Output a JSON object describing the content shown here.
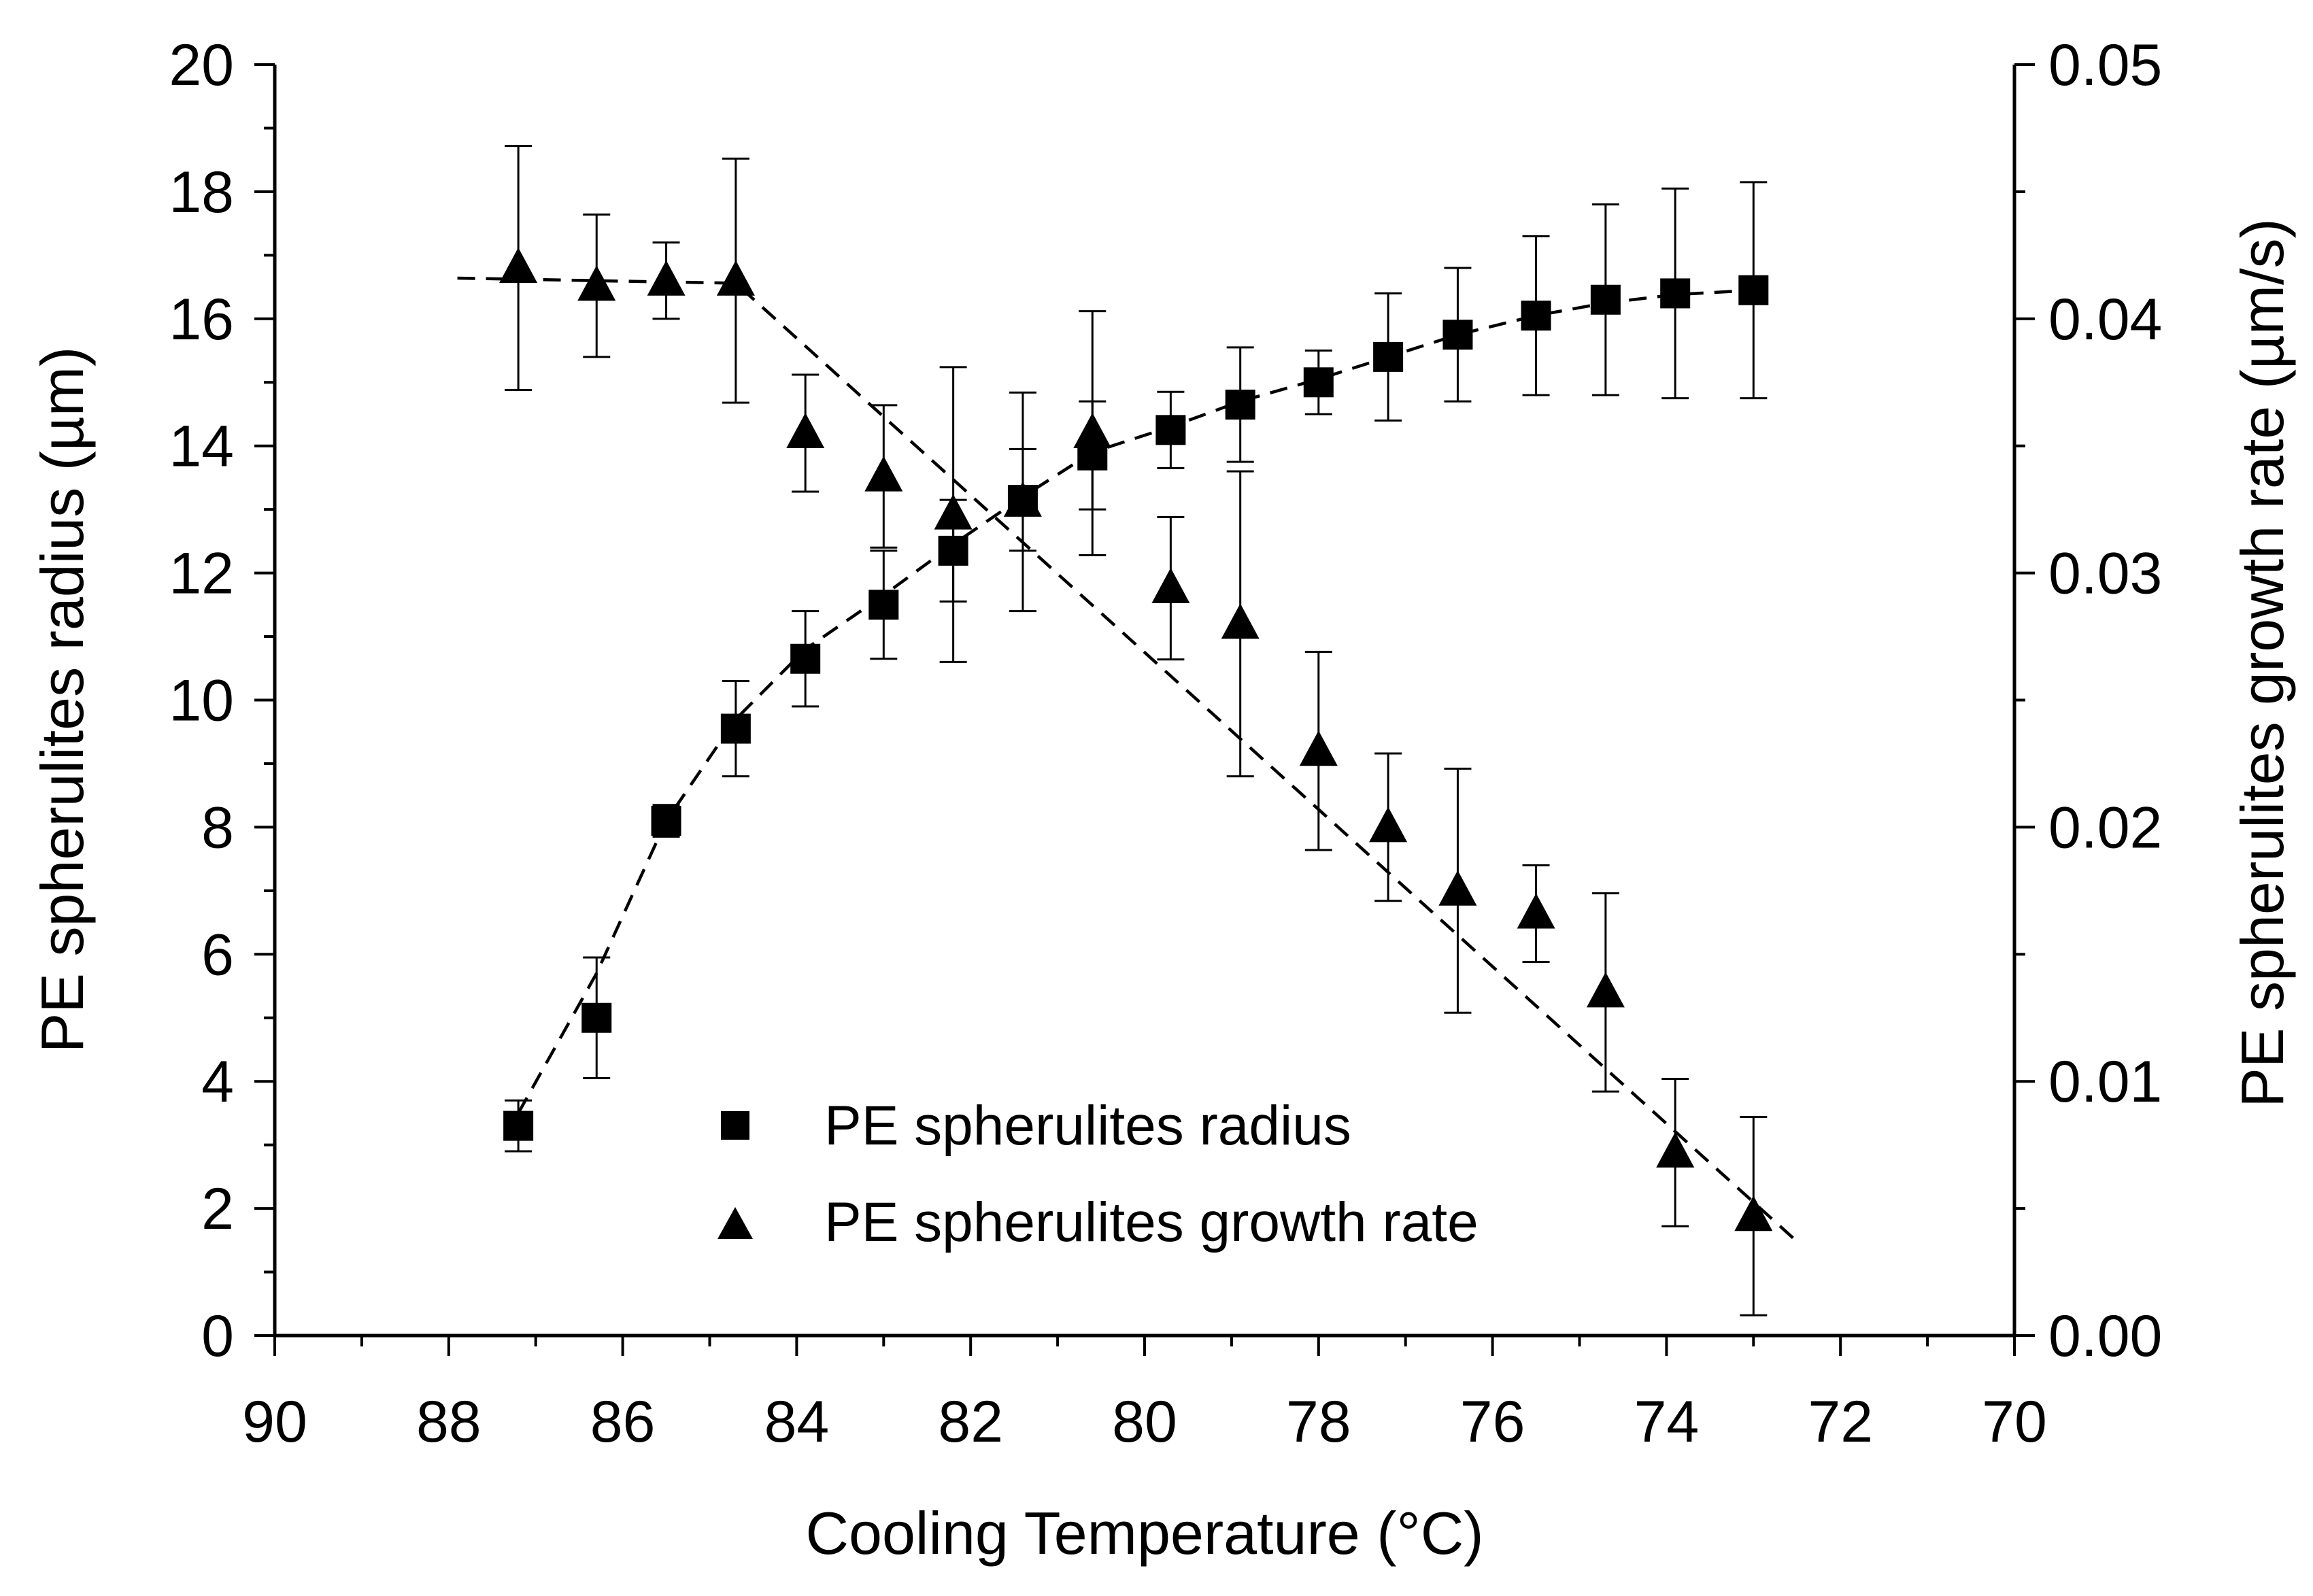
{
  "chart_data": {
    "type": "scatter",
    "title": "",
    "xlabel": "Cooling Temperature (°C)",
    "ylabel": "PE spherulites radius (µm)",
    "y2label": "PE spherulites growth rate (µm/s)",
    "xlim": [
      90,
      70
    ],
    "ylim": [
      0,
      20
    ],
    "y2lim": [
      0,
      0.05
    ],
    "x_ticks": [
      90,
      88,
      86,
      84,
      82,
      80,
      78,
      76,
      74,
      72,
      70
    ],
    "x_tick_labels": [
      "90",
      "88",
      "86",
      "84",
      "82",
      "80",
      "78",
      "76",
      "74",
      "72",
      "70"
    ],
    "y_ticks": [
      0,
      2,
      4,
      6,
      8,
      10,
      12,
      14,
      16,
      18,
      20
    ],
    "y_tick_labels": [
      "0",
      "2",
      "4",
      "6",
      "8",
      "10",
      "12",
      "14",
      "16",
      "18",
      "20"
    ],
    "y2_ticks": [
      0,
      0.01,
      0.02,
      0.03,
      0.04,
      0.05
    ],
    "y2_tick_labels": [
      "0.00",
      "0.01",
      "0.02",
      "0.03",
      "0.04",
      "0.05"
    ],
    "legend_position": "bottom-center",
    "grid": false,
    "colors": {
      "marker": "#000000",
      "axis": "#000000",
      "background": "#ffffff"
    },
    "series": [
      {
        "name": "PE spherulites radius",
        "marker": "square",
        "axis": "left",
        "x": [
          87.2,
          86.3,
          85.5,
          84.7,
          83.9,
          83.0,
          82.2,
          81.4,
          80.6,
          79.7,
          78.9,
          78.0,
          77.2,
          76.4,
          75.5,
          74.7,
          73.9,
          73.0
        ],
        "y": [
          3.3,
          5.0,
          8.1,
          9.55,
          10.65,
          11.5,
          12.35,
          13.15,
          13.85,
          14.25,
          14.65,
          15.0,
          15.4,
          15.75,
          16.05,
          16.3,
          16.4,
          16.45
        ],
        "err": [
          0.4,
          0.95,
          0.25,
          0.75,
          0.75,
          0.85,
          0.8,
          0.8,
          0.85,
          0.6,
          0.9,
          0.5,
          1.0,
          1.05,
          1.25,
          1.5,
          1.65,
          1.7
        ]
      },
      {
        "name": "PE spherulites growth rate",
        "marker": "triangle",
        "axis": "right",
        "x": [
          87.2,
          86.3,
          85.5,
          84.7,
          83.9,
          83.0,
          82.2,
          81.4,
          80.6,
          79.7,
          78.9,
          78.0,
          77.2,
          76.4,
          75.5,
          74.7,
          73.9,
          73.0
        ],
        "y": [
          0.042,
          0.0413,
          0.0415,
          0.0415,
          0.0355,
          0.0338,
          0.0323,
          0.0328,
          0.0355,
          0.0294,
          0.028,
          0.023,
          0.02,
          0.0175,
          0.0166,
          0.0135,
          0.0072,
          0.0047
        ],
        "err": [
          0.0048,
          0.0028,
          0.0015,
          0.0048,
          0.0023,
          0.0028,
          0.0058,
          0.0043,
          0.0048,
          0.0028,
          0.006,
          0.0039,
          0.0029,
          0.0048,
          0.0019,
          0.0039,
          0.0029,
          0.0039
        ]
      }
    ],
    "trend_lines": [
      {
        "name": "radius-trend",
        "axis": "left",
        "points": [
          [
            87.2,
            3.5
          ],
          [
            86.3,
            5.7
          ],
          [
            85.5,
            8.1
          ],
          [
            84.7,
            9.7
          ],
          [
            83.9,
            10.8
          ],
          [
            83.0,
            11.65
          ],
          [
            82.2,
            12.45
          ],
          [
            81.4,
            13.2
          ],
          [
            80.6,
            13.9
          ],
          [
            79.7,
            14.3
          ],
          [
            78.9,
            14.7
          ],
          [
            78.0,
            15.05
          ],
          [
            77.2,
            15.4
          ],
          [
            76.4,
            15.75
          ],
          [
            75.5,
            16.05
          ],
          [
            74.7,
            16.25
          ],
          [
            73.9,
            16.38
          ],
          [
            73.0,
            16.45
          ]
        ]
      },
      {
        "name": "growth-rate-trend",
        "axis": "right",
        "points": [
          [
            87.9,
            0.0416
          ],
          [
            84.7,
            0.0414
          ],
          [
            72.5,
            0.0037
          ]
        ]
      }
    ]
  }
}
